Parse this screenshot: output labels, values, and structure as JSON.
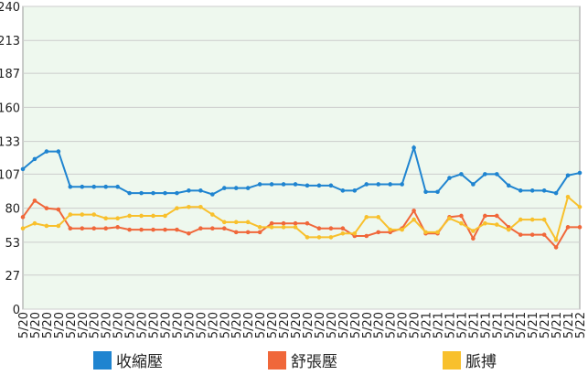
{
  "chart_data": {
    "type": "line",
    "categories": [
      "5/20",
      "5/20",
      "5/20",
      "5/20",
      "5/20",
      "5/20",
      "5/20",
      "5/20",
      "5/20",
      "5/20",
      "5/20",
      "5/20",
      "5/20",
      "5/20",
      "5/20",
      "5/20",
      "5/20",
      "5/20",
      "5/20",
      "5/20",
      "5/20",
      "5/20",
      "5/20",
      "5/20",
      "5/20",
      "5/20",
      "5/20",
      "5/20",
      "5/20",
      "5/20",
      "5/20",
      "5/20",
      "5/20",
      "5/20",
      "5/21",
      "5/21",
      "5/21",
      "5/21",
      "5/21",
      "5/21",
      "5/21",
      "5/21",
      "5/21",
      "5/21",
      "5/21",
      "5/21",
      "5/21",
      "5/22"
    ],
    "series": [
      {
        "name": "收縮壓",
        "color": "#1f84d0",
        "values": [
          111,
          119,
          125,
          125,
          97,
          97,
          97,
          97,
          97,
          92,
          92,
          92,
          92,
          92,
          94,
          94,
          91,
          96,
          96,
          96,
          99,
          99,
          99,
          99,
          98,
          98,
          98,
          94,
          94,
          99,
          99,
          99,
          99,
          128,
          93,
          93,
          104,
          107,
          99,
          107,
          107,
          98,
          94,
          94,
          94,
          92,
          106,
          108
        ]
      },
      {
        "name": "舒張壓",
        "color": "#f0673a",
        "values": [
          73,
          86,
          80,
          79,
          64,
          64,
          64,
          64,
          65,
          63,
          63,
          63,
          63,
          63,
          60,
          64,
          64,
          64,
          61,
          61,
          61,
          68,
          68,
          68,
          68,
          64,
          64,
          64,
          58,
          58,
          61,
          61,
          64,
          78,
          60,
          60,
          73,
          74,
          56,
          74,
          74,
          65,
          59,
          59,
          59,
          49,
          65,
          65
        ]
      },
      {
        "name": "脈搏",
        "color": "#f8c02c",
        "values": [
          64,
          68,
          66,
          66,
          75,
          75,
          75,
          72,
          72,
          74,
          74,
          74,
          74,
          80,
          81,
          81,
          75,
          69,
          69,
          69,
          65,
          65,
          65,
          65,
          57,
          57,
          57,
          60,
          60,
          73,
          73,
          63,
          63,
          71,
          61,
          61,
          72,
          68,
          62,
          68,
          67,
          63,
          71,
          71,
          71,
          55,
          89,
          81
        ]
      }
    ],
    "ylim": [
      0,
      240
    ],
    "yticks": [
      0,
      27,
      53,
      80,
      107,
      133,
      160,
      187,
      213,
      240
    ],
    "grid": true,
    "legend": "bottom"
  }
}
